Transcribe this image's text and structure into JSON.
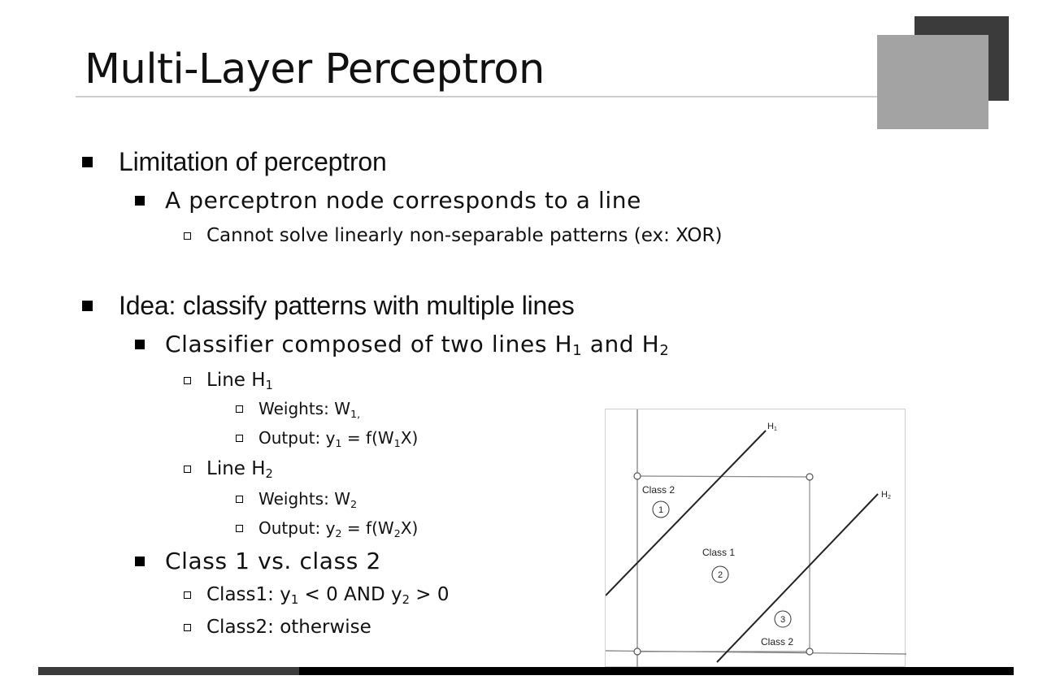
{
  "slide": {
    "title": "Multi-Layer Perceptron"
  },
  "bullets": {
    "b1_limitation": "Limitation of perceptron",
    "b2_node": "A perceptron node corresponds to a line",
    "b3_cannot": "Cannot solve linearly non-separable patterns (ex: XOR)",
    "b1_idea": "Idea: classify patterns with multiple lines",
    "b2_classifier_pre": "Classifier composed of two lines H",
    "b2_classifier_sub1": "1",
    "b2_classifier_mid": " and H",
    "b2_classifier_sub2": "2",
    "line_h1_pre": "Line H",
    "line_h1_sub": "1",
    "w1_pre": "Weights: W",
    "w1_sub": "1,",
    "out1_a": "Output: y",
    "out1_s1": "1",
    "out1_b": " = f(W",
    "out1_s2": "1",
    "out1_c": "X)",
    "line_h2_pre": "Line H",
    "line_h2_sub": "2",
    "w2_pre": "Weights: W",
    "w2_sub": "2",
    "out2_a": "Output: y",
    "out2_s1": "2",
    "out2_b": " = f(W",
    "out2_s2": "2",
    "out2_c": "X)",
    "b2_class": "Class 1 vs. class 2",
    "class1_a": "Class1: y",
    "class1_s1": "1",
    "class1_b": " < 0 AND y",
    "class1_s2": "2",
    "class1_c": " > 0",
    "class2": "Class2: otherwise"
  },
  "figure": {
    "label_h1": "H",
    "label_h1_sub": "1",
    "label_h2": "H",
    "label_h2_sub": "2",
    "region1_label": "Class 2",
    "region1_num": "1",
    "region2_label": "Class 1",
    "region2_num": "2",
    "region3_label": "Class 2",
    "region3_num": "3"
  },
  "colors": {
    "deco_dark": "#3b3b3b",
    "deco_light": "#a3a3a3",
    "footer": "#000000"
  }
}
